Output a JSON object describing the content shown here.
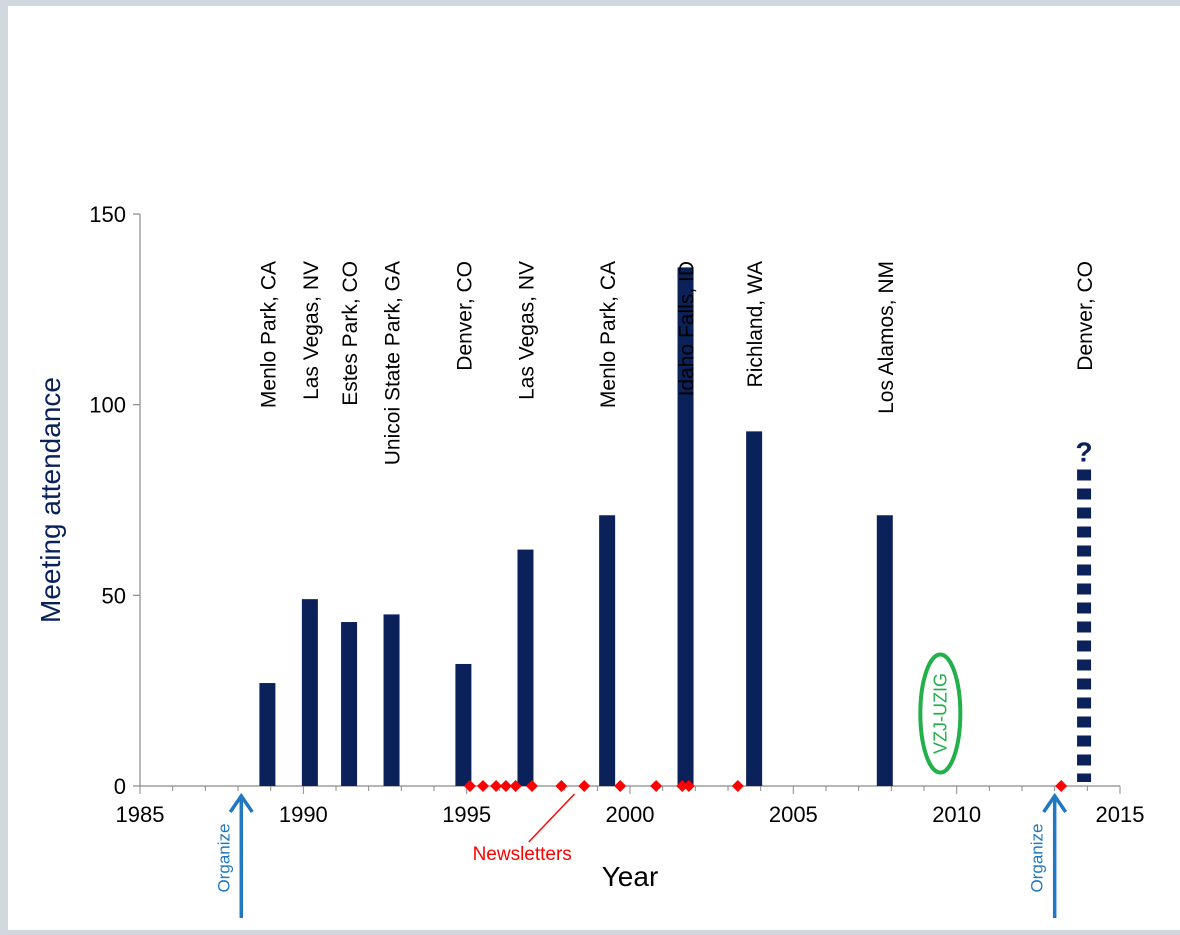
{
  "chart_data": {
    "type": "bar",
    "xlabel": "Year",
    "ylabel": "Meeting attendance",
    "xlim": [
      1985,
      2015
    ],
    "ylim": [
      0,
      150
    ],
    "x_ticks": [
      1985,
      1990,
      1995,
      2000,
      2005,
      2010,
      2015
    ],
    "y_ticks": [
      0,
      50,
      100,
      150
    ],
    "grid": false,
    "bar_color": "#0b2159",
    "marker_color": "#ff0000",
    "arrow_color": "#1f78c1",
    "ellipse_color": "#22b04b",
    "meetings": [
      {
        "year": 1988.9,
        "value": 27,
        "location": "Menlo Park, CA"
      },
      {
        "year": 1990.2,
        "value": 49,
        "location": "Las Vegas, NV"
      },
      {
        "year": 1991.4,
        "value": 43,
        "location": "Estes Park, CO"
      },
      {
        "year": 1992.7,
        "value": 45,
        "location": "Unicoi State Park, GA"
      },
      {
        "year": 1994.9,
        "value": 32,
        "location": "Denver, CO"
      },
      {
        "year": 1996.8,
        "value": 62,
        "location": "Las Vegas, NV"
      },
      {
        "year": 1999.3,
        "value": 71,
        "location": "Menlo Park, CA"
      },
      {
        "year": 2001.7,
        "value": 136,
        "location": "Idaho Falls, ID"
      },
      {
        "year": 2003.8,
        "value": 93,
        "location": "Richland, WA"
      },
      {
        "year": 2007.8,
        "value": 71,
        "location": "Los Alamos, NM"
      }
    ],
    "projected": {
      "year": 2013.9,
      "value": 83,
      "location": "Denver, CO",
      "marker": "?"
    },
    "newsletters": {
      "label": "Newsletters",
      "years": [
        1995.1,
        1995.5,
        1995.9,
        1996.2,
        1996.5,
        1997.0,
        1997.9,
        1998.6,
        1999.7,
        2000.8,
        2001.6,
        2001.8,
        2003.3,
        2013.2
      ]
    },
    "annotations": {
      "organize_label": "Organize",
      "organize_years": [
        1988.1,
        2013.0
      ],
      "ellipse_label": "VZJ-UZIG",
      "ellipse_year": 2009.5,
      "ellipse_value": 19
    }
  }
}
